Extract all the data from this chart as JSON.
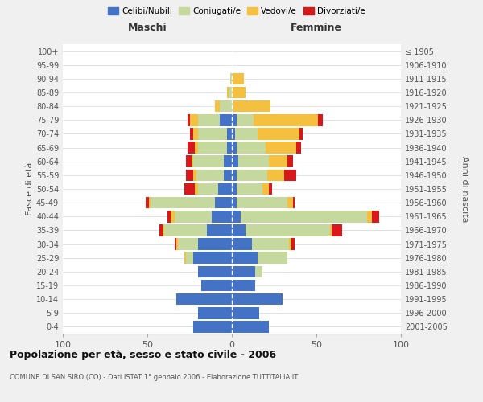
{
  "age_groups_bottom_to_top": [
    "0-4",
    "5-9",
    "10-14",
    "15-19",
    "20-24",
    "25-29",
    "30-34",
    "35-39",
    "40-44",
    "45-49",
    "50-54",
    "55-59",
    "60-64",
    "65-69",
    "70-74",
    "75-79",
    "80-84",
    "85-89",
    "90-94",
    "95-99",
    "100+"
  ],
  "birth_years_bottom_to_top": [
    "2001-2005",
    "1996-2000",
    "1991-1995",
    "1986-1990",
    "1981-1985",
    "1976-1980",
    "1971-1975",
    "1966-1970",
    "1961-1965",
    "1956-1960",
    "1951-1955",
    "1946-1950",
    "1941-1945",
    "1936-1940",
    "1931-1935",
    "1926-1930",
    "1921-1925",
    "1916-1920",
    "1911-1915",
    "1906-1910",
    "≤ 1905"
  ],
  "male": {
    "celibi": [
      23,
      20,
      33,
      18,
      20,
      23,
      20,
      15,
      12,
      10,
      8,
      5,
      5,
      3,
      3,
      7,
      0,
      0,
      0,
      0,
      0
    ],
    "coniugati": [
      0,
      0,
      0,
      0,
      0,
      4,
      12,
      25,
      22,
      38,
      12,
      16,
      18,
      17,
      17,
      13,
      7,
      2,
      1,
      0,
      0
    ],
    "vedovi": [
      0,
      0,
      0,
      0,
      0,
      1,
      1,
      1,
      2,
      1,
      2,
      2,
      1,
      2,
      3,
      5,
      3,
      1,
      0,
      0,
      0
    ],
    "divorziati": [
      0,
      0,
      0,
      0,
      0,
      0,
      1,
      2,
      2,
      2,
      6,
      4,
      3,
      4,
      2,
      1,
      0,
      0,
      0,
      0,
      0
    ]
  },
  "female": {
    "nubili": [
      22,
      16,
      30,
      14,
      14,
      15,
      12,
      8,
      5,
      3,
      3,
      3,
      4,
      3,
      2,
      3,
      0,
      0,
      0,
      0,
      0
    ],
    "coniugate": [
      0,
      0,
      0,
      0,
      4,
      18,
      22,
      50,
      75,
      30,
      15,
      18,
      18,
      17,
      13,
      10,
      1,
      0,
      0,
      0,
      0
    ],
    "vedove": [
      0,
      0,
      0,
      0,
      0,
      0,
      1,
      1,
      3,
      3,
      4,
      10,
      11,
      18,
      25,
      38,
      22,
      8,
      7,
      0,
      0
    ],
    "divorziate": [
      0,
      0,
      0,
      0,
      0,
      0,
      2,
      6,
      4,
      1,
      2,
      7,
      3,
      3,
      2,
      3,
      0,
      0,
      0,
      0,
      0
    ]
  },
  "colors": {
    "celibi": "#4472c4",
    "coniugati": "#c5d89d",
    "vedovi": "#f5c040",
    "divorziati": "#d7191c"
  },
  "xlim": 100,
  "title": "Popolazione per età, sesso e stato civile - 2006",
  "subtitle": "COMUNE DI SAN SIRO (CO) - Dati ISTAT 1° gennaio 2006 - Elaborazione TUTTITALIA.IT",
  "ylabel_left": "Fasce di età",
  "ylabel_right": "Anni di nascita",
  "xlabel_left": "Maschi",
  "xlabel_right": "Femmine"
}
